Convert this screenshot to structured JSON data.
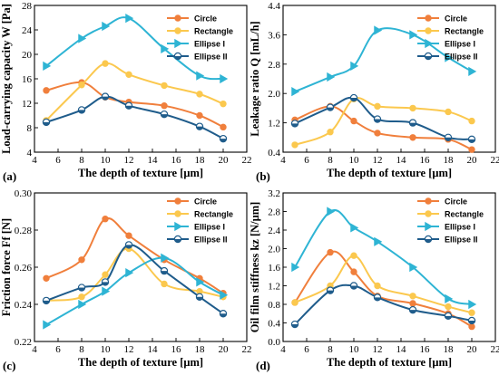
{
  "figure": {
    "panels": [
      {
        "tag": "(a)"
      },
      {
        "tag": "(b)"
      },
      {
        "tag": "(c)"
      },
      {
        "tag": "(d)"
      }
    ]
  },
  "chart_data": [
    {
      "type": "line",
      "panel": "(a)",
      "xlabel": "The depth of texture [μm]",
      "ylabel": "Load-carrying capacity W [Pa]",
      "xlim": [
        4,
        22
      ],
      "ylim": [
        4,
        28
      ],
      "xticks": [
        4,
        6,
        8,
        10,
        12,
        14,
        16,
        18,
        20,
        22
      ],
      "yticks": [
        4,
        8,
        12,
        16,
        20,
        24,
        28
      ],
      "legend_position": "top-right",
      "series": [
        {
          "name": "Circle",
          "color": "#F07F3C",
          "marker": "circle",
          "x": [
            5,
            8,
            10,
            12,
            15,
            18,
            20
          ],
          "y": [
            14.1,
            15.4,
            13.0,
            12.2,
            11.6,
            10.0,
            8.1
          ]
        },
        {
          "name": "Rectangle",
          "color": "#FBC84E",
          "marker": "circle",
          "x": [
            5,
            8,
            10,
            12,
            15,
            18,
            20
          ],
          "y": [
            9.2,
            15.0,
            18.5,
            16.7,
            14.9,
            13.5,
            11.9
          ]
        },
        {
          "name": "Ellipse I",
          "color": "#2EB4D4",
          "marker": "triangle",
          "x": [
            5,
            8,
            10,
            12,
            15,
            18,
            20
          ],
          "y": [
            18.1,
            22.6,
            24.6,
            25.9,
            20.9,
            16.5,
            16.0
          ]
        },
        {
          "name": "Ellipse II",
          "color": "#1F5C8B",
          "marker": "halfcircle",
          "x": [
            5,
            8,
            10,
            12,
            15,
            18,
            20
          ],
          "y": [
            8.9,
            10.9,
            13.1,
            11.6,
            10.2,
            8.2,
            6.2
          ]
        }
      ]
    },
    {
      "type": "line",
      "panel": "(b)",
      "xlabel": "The depth of texture [μm]",
      "ylabel": "Leakage ratio Q [mL/h]",
      "xlim": [
        4,
        22
      ],
      "ylim": [
        0.4,
        4.4
      ],
      "xticks": [
        4,
        6,
        8,
        10,
        12,
        14,
        16,
        18,
        20,
        22
      ],
      "yticks": [
        0.4,
        1.2,
        2.0,
        2.8,
        3.6,
        4.4
      ],
      "legend_position": "top-right",
      "series": [
        {
          "name": "Circle",
          "color": "#F07F3C",
          "marker": "circle",
          "x": [
            5,
            8,
            10,
            12,
            15,
            18,
            20
          ],
          "y": [
            1.28,
            1.65,
            1.25,
            0.92,
            0.8,
            0.75,
            0.47
          ]
        },
        {
          "name": "Rectangle",
          "color": "#FBC84E",
          "marker": "circle",
          "x": [
            5,
            8,
            10,
            12,
            15,
            18,
            20
          ],
          "y": [
            0.6,
            0.95,
            1.85,
            1.65,
            1.6,
            1.5,
            1.25
          ]
        },
        {
          "name": "Ellipse I",
          "color": "#2EB4D4",
          "marker": "triangle",
          "x": [
            5,
            8,
            10,
            12,
            15,
            18,
            20
          ],
          "y": [
            2.05,
            2.45,
            2.75,
            3.72,
            3.6,
            2.98,
            2.6
          ]
        },
        {
          "name": "Ellipse II",
          "color": "#1F5C8B",
          "marker": "halfcircle",
          "x": [
            5,
            8,
            10,
            12,
            15,
            18,
            20
          ],
          "y": [
            1.18,
            1.62,
            1.88,
            1.3,
            1.2,
            0.8,
            0.75
          ]
        }
      ]
    },
    {
      "type": "line",
      "panel": "(c)",
      "xlabel": "The depth of texture [μm]",
      "ylabel": "Friction force Ff [N]",
      "xlim": [
        4,
        22
      ],
      "ylim": [
        0.22,
        0.3
      ],
      "xticks": [
        4,
        6,
        8,
        10,
        12,
        14,
        16,
        18,
        20,
        22
      ],
      "yticks": [
        0.22,
        0.24,
        0.26,
        0.28,
        0.3
      ],
      "legend_position": "top-right",
      "series": [
        {
          "name": "Circle",
          "color": "#F07F3C",
          "marker": "circle",
          "x": [
            5,
            8,
            10,
            12,
            15,
            18,
            20
          ],
          "y": [
            0.254,
            0.264,
            0.286,
            0.277,
            0.264,
            0.254,
            0.246
          ]
        },
        {
          "name": "Rectangle",
          "color": "#FBC84E",
          "marker": "circle",
          "x": [
            5,
            8,
            10,
            12,
            15,
            18,
            20
          ],
          "y": [
            0.242,
            0.244,
            0.256,
            0.27,
            0.251,
            0.247,
            0.244
          ]
        },
        {
          "name": "Ellipse I",
          "color": "#2EB4D4",
          "marker": "triangle",
          "x": [
            5,
            8,
            10,
            12,
            15,
            18,
            20
          ],
          "y": [
            0.229,
            0.24,
            0.247,
            0.257,
            0.265,
            0.252,
            0.245
          ]
        },
        {
          "name": "Ellipse II",
          "color": "#1F5C8B",
          "marker": "halfcircle",
          "x": [
            5,
            8,
            10,
            12,
            15,
            18,
            20
          ],
          "y": [
            0.242,
            0.249,
            0.252,
            0.272,
            0.258,
            0.244,
            0.235
          ]
        }
      ]
    },
    {
      "type": "line",
      "panel": "(d)",
      "xlabel": "The depth of texture [μm]",
      "ylabel": "Oil film stiffness kz [N/μm]",
      "xlim": [
        4,
        22
      ],
      "ylim": [
        0.0,
        3.2
      ],
      "xticks": [
        4,
        6,
        8,
        10,
        12,
        14,
        16,
        18,
        20,
        22
      ],
      "yticks": [
        0.0,
        0.4,
        0.8,
        1.2,
        1.6,
        2.0,
        2.4,
        2.8,
        3.2
      ],
      "legend_position": "top-right",
      "series": [
        {
          "name": "Circle",
          "color": "#F07F3C",
          "marker": "circle",
          "x": [
            5,
            8,
            10,
            12,
            15,
            18,
            20
          ],
          "y": [
            0.84,
            1.92,
            1.5,
            0.98,
            0.82,
            0.6,
            0.32
          ]
        },
        {
          "name": "Rectangle",
          "color": "#FBC84E",
          "marker": "circle",
          "x": [
            5,
            8,
            10,
            12,
            15,
            18,
            20
          ],
          "y": [
            0.84,
            1.2,
            1.85,
            1.2,
            0.98,
            0.75,
            0.62
          ]
        },
        {
          "name": "Ellipse I",
          "color": "#2EB4D4",
          "marker": "triangle",
          "x": [
            5,
            8,
            10,
            12,
            15,
            18,
            20
          ],
          "y": [
            1.6,
            2.8,
            2.45,
            2.15,
            1.6,
            0.92,
            0.8
          ]
        },
        {
          "name": "Ellipse II",
          "color": "#1F5C8B",
          "marker": "halfcircle",
          "x": [
            5,
            8,
            10,
            12,
            15,
            18,
            20
          ],
          "y": [
            0.37,
            1.1,
            1.2,
            0.95,
            0.68,
            0.55,
            0.45
          ]
        }
      ]
    }
  ]
}
